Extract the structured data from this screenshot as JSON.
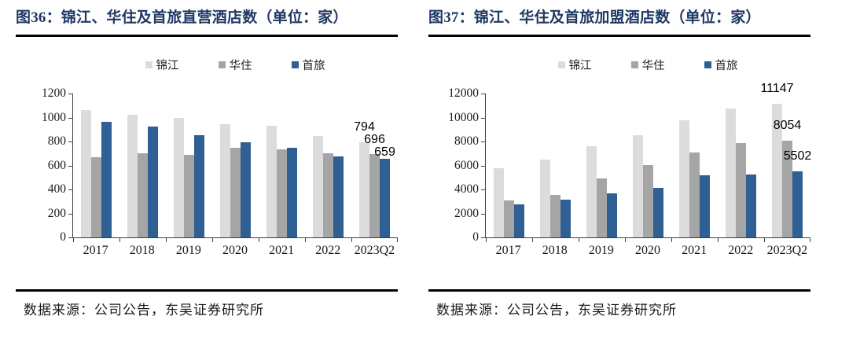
{
  "page": {
    "background": "#ffffff"
  },
  "colors": {
    "title": "#1f3864",
    "rule": "#000000",
    "axis": "#404040",
    "jinjiang_gray": "#dcdcde",
    "huazhu_gray": "#a5a5a5",
    "shoulv_blue": "#2f5f93"
  },
  "panels": [
    {
      "title": "图36：锦江、华住及首旅直营酒店数（单位：家）",
      "source": "数据来源：公司公告，东吴证券研究所"
    },
    {
      "title": "图37：锦江、华住及首旅加盟酒店数（单位：家）",
      "source": "数据来源：公司公告，东吴证券研究所"
    }
  ],
  "chart_data": [
    {
      "type": "bar",
      "title": "图36：锦江、华住及首旅直营酒店数（单位：家）",
      "categories": [
        "2017",
        "2018",
        "2019",
        "2020",
        "2021",
        "2022",
        "2023Q2"
      ],
      "series": [
        {
          "name": "锦江",
          "color": "#dcdcde",
          "values": [
            1060,
            1025,
            1000,
            945,
            930,
            845,
            794
          ]
        },
        {
          "name": "华住",
          "color": "#a5a5a5",
          "values": [
            670,
            700,
            690,
            748,
            735,
            700,
            696
          ]
        },
        {
          "name": "首旅",
          "color": "#2f5f93",
          "values": [
            965,
            925,
            855,
            795,
            750,
            675,
            659
          ]
        }
      ],
      "data_labels_last_category": [
        "794",
        "696",
        "659"
      ],
      "ylim": [
        0,
        1200
      ],
      "ytick_step": 200,
      "xlabel": "",
      "ylabel": "",
      "grid": false,
      "legend_position": "top",
      "source": "数据来源：公司公告，东吴证券研究所"
    },
    {
      "type": "bar",
      "title": "图37：锦江、华住及首旅加盟酒店数（单位：家）",
      "categories": [
        "2017",
        "2018",
        "2019",
        "2020",
        "2021",
        "2022",
        "2023Q2"
      ],
      "series": [
        {
          "name": "锦江",
          "color": "#dcdcde",
          "values": [
            5750,
            6500,
            7600,
            8550,
            9800,
            10750,
            11147
          ]
        },
        {
          "name": "华住",
          "color": "#a5a5a5",
          "values": [
            3100,
            3550,
            4950,
            6050,
            7100,
            7850,
            8054
          ]
        },
        {
          "name": "首旅",
          "color": "#2f5f93",
          "values": [
            2750,
            3150,
            3650,
            4100,
            5150,
            5250,
            5502
          ]
        }
      ],
      "data_labels_last_category": [
        "11147",
        "8054",
        "5502"
      ],
      "ylim": [
        0,
        12000
      ],
      "ytick_step": 2000,
      "xlabel": "",
      "ylabel": "",
      "grid": false,
      "legend_position": "top",
      "source": "数据来源：公司公告，东吴证券研究所"
    }
  ]
}
